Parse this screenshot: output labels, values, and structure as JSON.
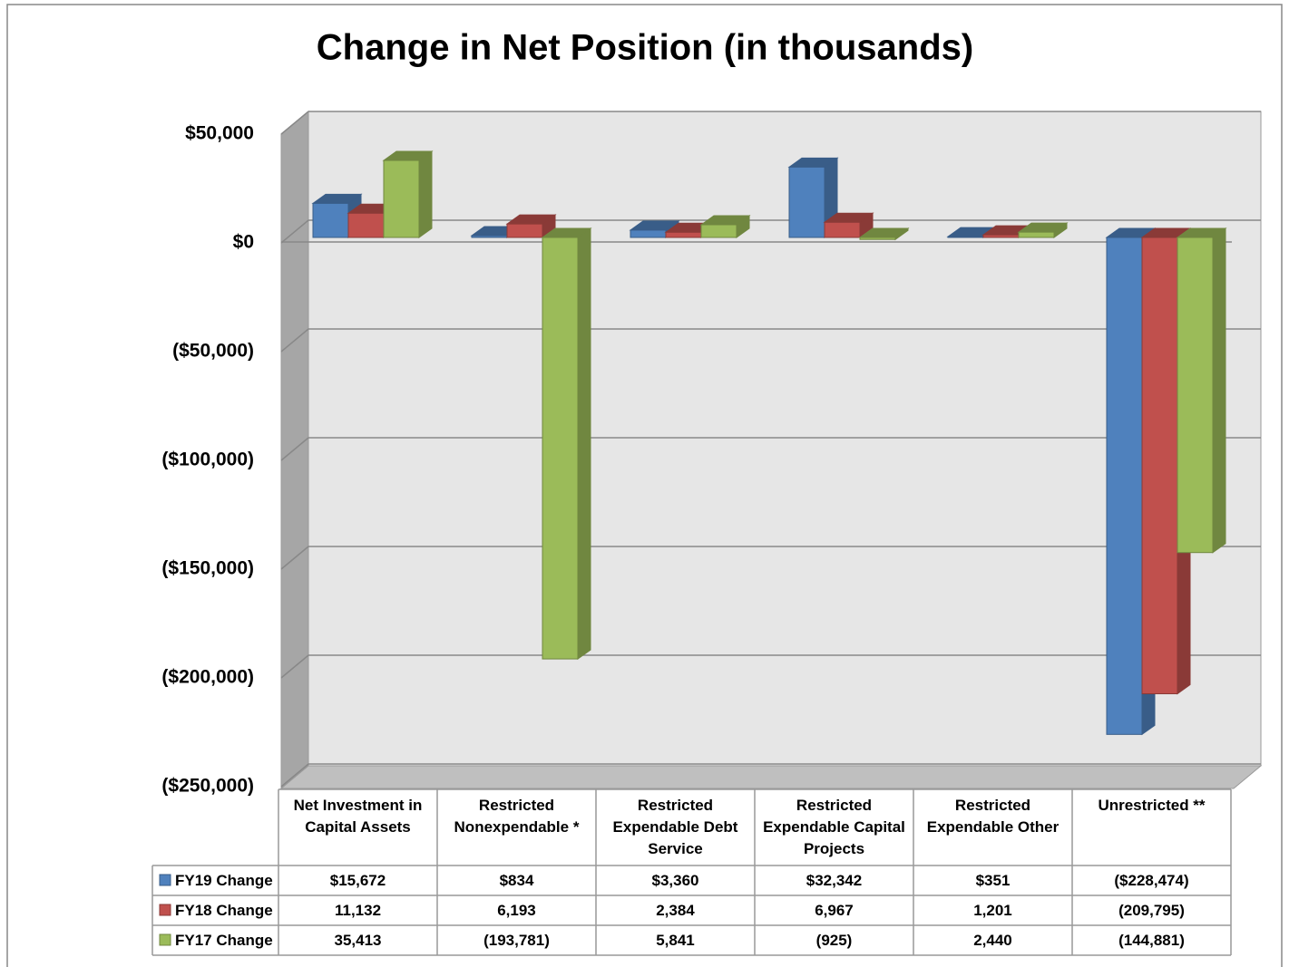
{
  "chart_data": {
    "type": "bar3d",
    "title": "Change in Net Position (in thousands)",
    "categories": [
      "Net Investment in Capital Assets",
      "Restricted Nonexpendable *",
      "Restricted Expendable Debt Service",
      "Restricted Expendable Capital Projects",
      "Restricted Expendable Other",
      "Unrestricted **"
    ],
    "series": [
      {
        "name": "FY19 Change",
        "color": "#4f81bd",
        "values": [
          15672,
          834,
          3360,
          32342,
          351,
          -228474
        ],
        "value_labels": [
          "$15,672",
          "$834",
          "$3,360",
          "$32,342",
          "$351",
          "($228,474)"
        ]
      },
      {
        "name": "FY18 Change",
        "color": "#c0504d",
        "values": [
          11132,
          6193,
          2384,
          6967,
          1201,
          -209795
        ],
        "value_labels": [
          "11,132",
          "6,193",
          "2,384",
          "6,967",
          "1,201",
          "(209,795)"
        ]
      },
      {
        "name": "FY17 Change",
        "color": "#9bbb59",
        "values": [
          35413,
          -193781,
          5841,
          -925,
          2440,
          -144881
        ],
        "value_labels": [
          "35,413",
          "(193,781)",
          "5,841",
          "(925)",
          "2,440",
          "(144,881)"
        ]
      }
    ],
    "ylim": [
      -250000,
      50000
    ],
    "yticks": [
      {
        "value": 50000,
        "label": "$50,000"
      },
      {
        "value": 0,
        "label": "$0"
      },
      {
        "value": -50000,
        "label": "($50,000)"
      },
      {
        "value": -100000,
        "label": "($100,000)"
      },
      {
        "value": -150000,
        "label": "($150,000)"
      },
      {
        "value": -200000,
        "label": "($200,000)"
      },
      {
        "value": -250000,
        "label": "($250,000)"
      }
    ],
    "grid": true
  }
}
